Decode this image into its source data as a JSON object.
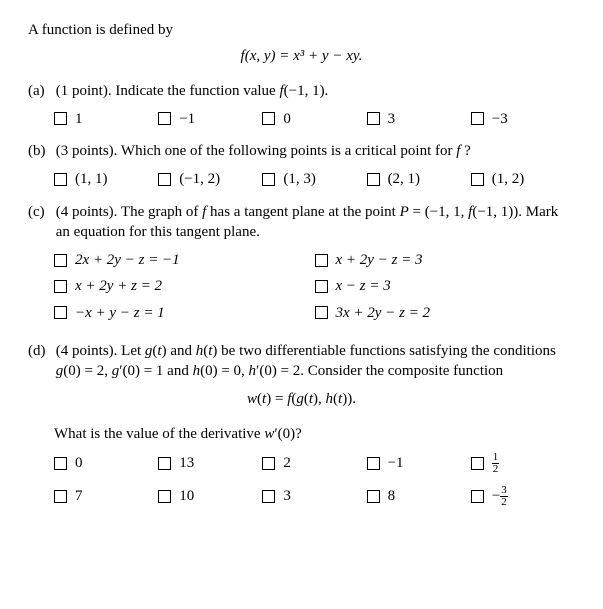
{
  "intro": "A function is defined by",
  "main_eq": "f(x, y) = x³ + y − xy.",
  "a": {
    "label": "(a)",
    "points": "(1 point).",
    "prompt": "Indicate the function value f(−1, 1).",
    "opts": [
      "1",
      "−1",
      "0",
      "3",
      "−3"
    ]
  },
  "b": {
    "label": "(b)",
    "points": "(3 points).",
    "prompt": "Which one of the following points is a critical point for f ?",
    "opts": [
      "(1, 1)",
      "(−1, 2)",
      "(1, 3)",
      "(2, 1)",
      "(1, 2)"
    ]
  },
  "c": {
    "label": "(c)",
    "points": "(4 points).",
    "prompt_a": "The graph of f has a tangent plane at the point P = (−1, 1, f(−1, 1)).",
    "prompt_b": "Mark an equation for this tangent plane.",
    "opts": [
      "2x + 2y − z = −1",
      "x + 2y − z = 3",
      "x + 2y + z = 2",
      "x − z = 3",
      "−x + y − z = 1",
      "3x + 2y − z = 2"
    ]
  },
  "d": {
    "label": "(d)",
    "points": "(4 points).",
    "prompt_a": "Let g(t) and h(t) be two differentiable functions satisfying the conditions g(0) = 2, g′(0) = 1 and h(0) = 0, h′(0) = 2. Consider the composite function",
    "comp_eq": "w(t) = f(g(t), h(t)).",
    "prompt_b": "What is the value of the derivative w′(0)?",
    "opts_r1": [
      "0",
      "13",
      "2",
      "−1"
    ],
    "opts_r2": [
      "7",
      "10",
      "3",
      "8"
    ],
    "frac1": {
      "n": "1",
      "d": "2"
    },
    "frac2": {
      "sign": "−",
      "n": "3",
      "d": "2"
    }
  }
}
